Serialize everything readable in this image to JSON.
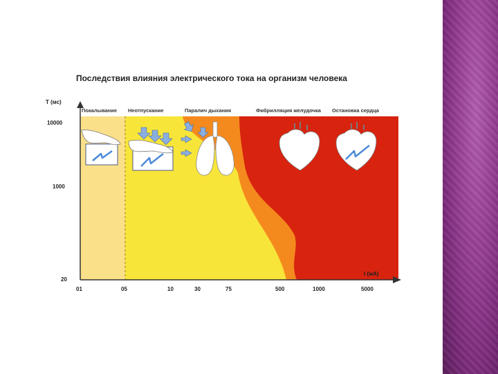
{
  "figure": {
    "title": "Последствия влияния электрического тока на организм человека",
    "y_axis_label": "T (мс)",
    "x_axis_label": "I (мА)",
    "y_ticks": [
      "10000",
      "1000",
      "20"
    ],
    "x_ticks": [
      "01",
      "05",
      "10",
      "30",
      "75",
      "500",
      "1000",
      "5000"
    ],
    "zones": [
      {
        "label": "Покалывание",
        "color": "#fbe08a"
      },
      {
        "label": "Неотпускание",
        "color": "#f8e53a"
      },
      {
        "label": "Паралич дыхания",
        "color": "#f48a1e"
      },
      {
        "label": "Фибрилляция желудочка",
        "color": "#d8230f"
      },
      {
        "label": "Остановка сердца",
        "color": "#d8230f"
      }
    ]
  }
}
